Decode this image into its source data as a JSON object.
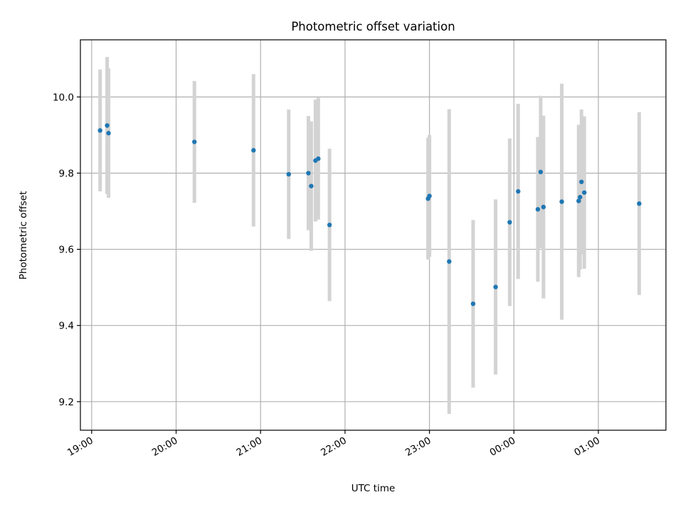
{
  "chart_data": {
    "type": "scatter",
    "title": "Photometric offset variation",
    "xlabel": "UTC time",
    "ylabel": "Photometric offset",
    "x_axis": {
      "kind": "time",
      "range": [
        "18:52",
        "01:48"
      ],
      "ticks": [
        "19:00",
        "20:00",
        "21:00",
        "22:00",
        "23:00",
        "00:00",
        "01:00"
      ],
      "tick_rotation": "30 degrees"
    },
    "y_axis": {
      "range": [
        9.125,
        10.15
      ],
      "ticks": [
        9.2,
        9.4,
        9.6,
        9.8,
        10.0
      ],
      "tick_labels": [
        "9.2",
        "9.4",
        "9.6",
        "9.8",
        "10.0"
      ]
    },
    "grid": true,
    "legend": "none",
    "colors": {
      "marker": "#1f77b4",
      "errorbar": "#d3d3d3",
      "grid": "#b0b0b0"
    },
    "series": [
      {
        "points": [
          {
            "x": "19:06",
            "y": 9.912,
            "err": 0.16
          },
          {
            "x": "19:11",
            "y": 9.925,
            "err": 0.18
          },
          {
            "x": "19:12",
            "y": 9.905,
            "err": 0.17
          },
          {
            "x": "20:13",
            "y": 9.882,
            "err": 0.16
          },
          {
            "x": "20:55",
            "y": 9.86,
            "err": 0.2
          },
          {
            "x": "21:20",
            "y": 9.797,
            "err": 0.17
          },
          {
            "x": "21:34",
            "y": 9.8,
            "err": 0.15
          },
          {
            "x": "21:36",
            "y": 9.766,
            "err": 0.17
          },
          {
            "x": "21:39",
            "y": 9.833,
            "err": 0.16
          },
          {
            "x": "21:41",
            "y": 9.838,
            "err": 0.16
          },
          {
            "x": "21:49",
            "y": 9.664,
            "err": 0.2
          },
          {
            "x": "22:59",
            "y": 9.733,
            "err": 0.16
          },
          {
            "x": "23:00",
            "y": 9.74,
            "err": 0.16
          },
          {
            "x": "23:14",
            "y": 9.568,
            "err": 0.4
          },
          {
            "x": "23:31",
            "y": 9.457,
            "err": 0.22
          },
          {
            "x": "23:47",
            "y": 9.501,
            "err": 0.23
          },
          {
            "x": "23:57",
            "y": 9.671,
            "err": 0.22
          },
          {
            "x": "00:03",
            "y": 9.752,
            "err": 0.23
          },
          {
            "x": "00:17",
            "y": 9.705,
            "err": 0.19
          },
          {
            "x": "00:19",
            "y": 9.803,
            "err": 0.2
          },
          {
            "x": "00:21",
            "y": 9.711,
            "err": 0.24
          },
          {
            "x": "00:34",
            "y": 9.725,
            "err": 0.31
          },
          {
            "x": "00:46",
            "y": 9.727,
            "err": 0.2
          },
          {
            "x": "00:47",
            "y": 9.737,
            "err": 0.19
          },
          {
            "x": "00:48",
            "y": 9.777,
            "err": 0.19
          },
          {
            "x": "00:50",
            "y": 9.749,
            "err": 0.2
          },
          {
            "x": "01:29",
            "y": 9.72,
            "err": 0.24
          }
        ]
      }
    ]
  }
}
